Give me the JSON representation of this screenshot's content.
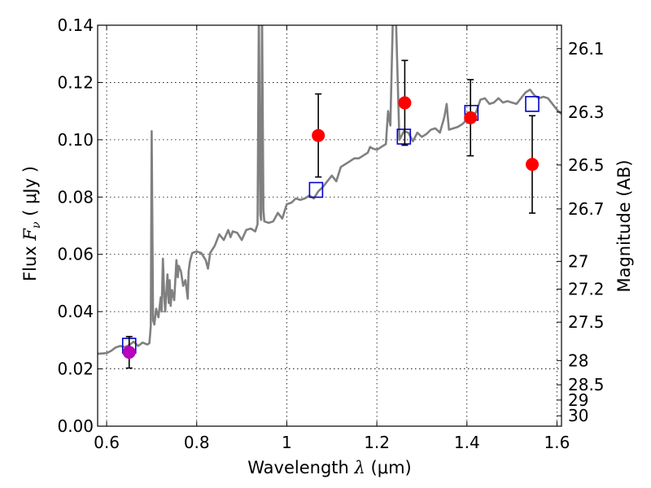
{
  "chart_data": {
    "type": "scatter",
    "xlabel": {
      "prefix": "Wavelength",
      "symbol": "λ",
      "unit": "(μm)"
    },
    "ylabel": {
      "prefix": "Flux",
      "symbol": "F",
      "subscript": "ν",
      "unit": "( μJy )"
    },
    "ylabel_right": "Magnitude (AB)",
    "xlim": [
      0.58,
      1.61
    ],
    "ylim": [
      0.0,
      0.14
    ],
    "grid": true,
    "x_ticks": [
      {
        "value": 0.6,
        "label": "0.6"
      },
      {
        "value": 0.8,
        "label": "0.8"
      },
      {
        "value": 1.0,
        "label": "1"
      },
      {
        "value": 1.2,
        "label": "1.2"
      },
      {
        "value": 1.4,
        "label": "1.4"
      },
      {
        "value": 1.6,
        "label": "1.6"
      }
    ],
    "y_ticks": [
      {
        "value": 0.0,
        "label": "0.00"
      },
      {
        "value": 0.02,
        "label": "0.02"
      },
      {
        "value": 0.04,
        "label": "0.04"
      },
      {
        "value": 0.06,
        "label": "0.06"
      },
      {
        "value": 0.08,
        "label": "0.08"
      },
      {
        "value": 0.1,
        "label": "0.10"
      },
      {
        "value": 0.12,
        "label": "0.12"
      },
      {
        "value": 0.14,
        "label": "0.14"
      }
    ],
    "mag_ticks": [
      {
        "mag": 26.1,
        "label": "26.1"
      },
      {
        "mag": 26.3,
        "label": "26.3"
      },
      {
        "mag": 26.5,
        "label": "26.5"
      },
      {
        "mag": 26.7,
        "label": "26.7"
      },
      {
        "mag": 27.0,
        "label": "27"
      },
      {
        "mag": 27.2,
        "label": "27.2"
      },
      {
        "mag": 27.5,
        "label": "27.5"
      },
      {
        "mag": 28.0,
        "label": "28"
      },
      {
        "mag": 28.5,
        "label": "28.5"
      },
      {
        "mag": 29.0,
        "label": "29"
      },
      {
        "mag": 30.0,
        "label": "30"
      }
    ],
    "series": [
      {
        "kind": "line",
        "color": "#808080",
        "points": [
          [
            0.58,
            0.0253
          ],
          [
            0.6,
            0.0255
          ],
          [
            0.61,
            0.0263
          ],
          [
            0.62,
            0.0275
          ],
          [
            0.63,
            0.028
          ],
          [
            0.64,
            0.0276
          ],
          [
            0.65,
            0.0283
          ],
          [
            0.66,
            0.0295
          ],
          [
            0.67,
            0.028
          ],
          [
            0.68,
            0.0292
          ],
          [
            0.69,
            0.0285
          ],
          [
            0.695,
            0.029
          ],
          [
            0.698,
            0.035
          ],
          [
            0.7,
            0.103
          ],
          [
            0.703,
            0.037
          ],
          [
            0.706,
            0.0355
          ],
          [
            0.71,
            0.041
          ],
          [
            0.715,
            0.038
          ],
          [
            0.72,
            0.045
          ],
          [
            0.722,
            0.04
          ],
          [
            0.725,
            0.0585
          ],
          [
            0.728,
            0.045
          ],
          [
            0.73,
            0.04
          ],
          [
            0.735,
            0.053
          ],
          [
            0.738,
            0.043
          ],
          [
            0.74,
            0.051
          ],
          [
            0.742,
            0.042
          ],
          [
            0.745,
            0.0475
          ],
          [
            0.75,
            0.044
          ],
          [
            0.755,
            0.058
          ],
          [
            0.758,
            0.052
          ],
          [
            0.76,
            0.056
          ],
          [
            0.765,
            0.054
          ],
          [
            0.77,
            0.049
          ],
          [
            0.775,
            0.051
          ],
          [
            0.78,
            0.0445
          ],
          [
            0.782,
            0.054
          ],
          [
            0.785,
            0.0575
          ],
          [
            0.79,
            0.0605
          ],
          [
            0.8,
            0.061
          ],
          [
            0.81,
            0.0605
          ],
          [
            0.82,
            0.058
          ],
          [
            0.825,
            0.055
          ],
          [
            0.83,
            0.0605
          ],
          [
            0.84,
            0.063
          ],
          [
            0.85,
            0.067
          ],
          [
            0.86,
            0.065
          ],
          [
            0.87,
            0.0685
          ],
          [
            0.875,
            0.066
          ],
          [
            0.88,
            0.068
          ],
          [
            0.89,
            0.0675
          ],
          [
            0.9,
            0.065
          ],
          [
            0.91,
            0.0685
          ],
          [
            0.92,
            0.069
          ],
          [
            0.93,
            0.068
          ],
          [
            0.935,
            0.0705
          ],
          [
            0.938,
            0.145
          ],
          [
            0.941,
            0.074
          ],
          [
            0.943,
            0.072
          ],
          [
            0.945,
            0.145
          ],
          [
            0.948,
            0.0755
          ],
          [
            0.95,
            0.0715
          ],
          [
            0.96,
            0.071
          ],
          [
            0.97,
            0.0715
          ],
          [
            0.98,
            0.0745
          ],
          [
            0.99,
            0.0725
          ],
          [
            1.0,
            0.0775
          ],
          [
            1.01,
            0.078
          ],
          [
            1.02,
            0.0795
          ],
          [
            1.03,
            0.079
          ],
          [
            1.04,
            0.0795
          ],
          [
            1.05,
            0.0805
          ],
          [
            1.06,
            0.0795
          ],
          [
            1.07,
            0.082
          ],
          [
            1.08,
            0.0835
          ],
          [
            1.09,
            0.0855
          ],
          [
            1.1,
            0.0875
          ],
          [
            1.11,
            0.0855
          ],
          [
            1.12,
            0.0905
          ],
          [
            1.13,
            0.0915
          ],
          [
            1.14,
            0.0925
          ],
          [
            1.15,
            0.0935
          ],
          [
            1.16,
            0.0935
          ],
          [
            1.17,
            0.0945
          ],
          [
            1.18,
            0.0955
          ],
          [
            1.185,
            0.0975
          ],
          [
            1.19,
            0.097
          ],
          [
            1.2,
            0.0965
          ],
          [
            1.21,
            0.0975
          ],
          [
            1.22,
            0.0985
          ],
          [
            1.225,
            0.11
          ],
          [
            1.23,
            0.105
          ],
          [
            1.236,
            0.145
          ],
          [
            1.242,
            0.145
          ],
          [
            1.25,
            0.1
          ],
          [
            1.26,
            0.103
          ],
          [
            1.27,
            0.1025
          ],
          [
            1.28,
            0.0995
          ],
          [
            1.29,
            0.1025
          ],
          [
            1.3,
            0.101
          ],
          [
            1.31,
            0.102
          ],
          [
            1.32,
            0.1035
          ],
          [
            1.33,
            0.104
          ],
          [
            1.34,
            0.1025
          ],
          [
            1.35,
            0.108
          ],
          [
            1.355,
            0.1125
          ],
          [
            1.36,
            0.1035
          ],
          [
            1.37,
            0.104
          ],
          [
            1.38,
            0.1045
          ],
          [
            1.39,
            0.1055
          ],
          [
            1.4,
            0.107
          ],
          [
            1.41,
            0.1085
          ],
          [
            1.42,
            0.1095
          ],
          [
            1.43,
            0.114
          ],
          [
            1.44,
            0.1145
          ],
          [
            1.45,
            0.1125
          ],
          [
            1.46,
            0.113
          ],
          [
            1.47,
            0.1145
          ],
          [
            1.48,
            0.113
          ],
          [
            1.49,
            0.1135
          ],
          [
            1.5,
            0.113
          ],
          [
            1.51,
            0.1125
          ],
          [
            1.52,
            0.1145
          ],
          [
            1.53,
            0.1165
          ],
          [
            1.54,
            0.1175
          ],
          [
            1.55,
            0.1155
          ],
          [
            1.56,
            0.1145
          ],
          [
            1.57,
            0.115
          ],
          [
            1.58,
            0.1145
          ],
          [
            1.59,
            0.1125
          ],
          [
            1.6,
            0.1105
          ],
          [
            1.61,
            0.109
          ]
        ]
      },
      {
        "kind": "open-square",
        "color": "#0000cc",
        "points": [
          [
            0.65,
            0.0281
          ],
          [
            1.065,
            0.0825
          ],
          [
            1.26,
            0.1011
          ],
          [
            1.41,
            0.1094
          ],
          [
            1.545,
            0.1125
          ]
        ]
      },
      {
        "kind": "filled-circle-errorbar",
        "color": "#ff0000",
        "points": [
          {
            "x": 1.07,
            "y": 0.1015,
            "err": 0.0145
          },
          {
            "x": 1.262,
            "y": 0.1129,
            "err": 0.0148
          },
          {
            "x": 1.408,
            "y": 0.1077,
            "err": 0.0133
          },
          {
            "x": 1.545,
            "y": 0.0914,
            "err": 0.017
          }
        ]
      },
      {
        "kind": "filled-circle-errorbar",
        "color": "#bb00bb",
        "points": [
          {
            "x": 0.65,
            "y": 0.0258,
            "err": 0.0055
          }
        ]
      }
    ]
  }
}
